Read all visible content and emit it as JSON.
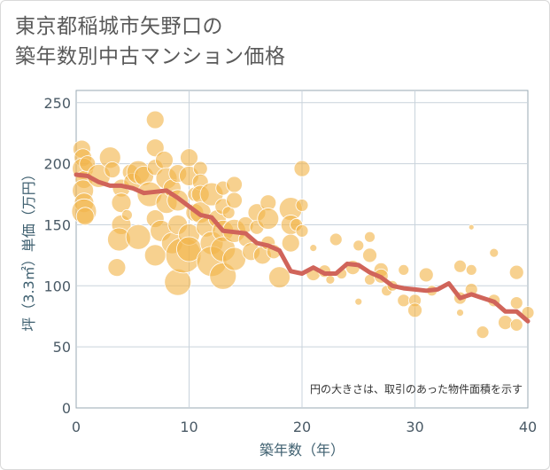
{
  "title_line1": "東京都稲城市矢野口の",
  "title_line2": "築年数別中古マンション価格",
  "colors": {
    "bubble_fill": "#f2b54a",
    "bubble_stroke": "#ffffff",
    "line": "#d0645a",
    "grid": "#c9d3dc",
    "plot_border": "#9aa8b3"
  },
  "chart_data": {
    "type": "scatter",
    "xlabel": "築年数（年）",
    "ylabel": "坪（3.3㎡）単価（万円）",
    "xlim": [
      0,
      40
    ],
    "ylim": [
      0,
      260
    ],
    "xticks": [
      0,
      10,
      20,
      30,
      40
    ],
    "yticks": [
      0,
      50,
      100,
      150,
      200,
      250
    ],
    "grid": true,
    "note": "円の大きさは、取引のあった物件面積を示す",
    "bubbles": [
      {
        "x": 0.5,
        "y": 212,
        "size": 10
      },
      {
        "x": 0.6,
        "y": 205,
        "size": 10
      },
      {
        "x": 0.6,
        "y": 196,
        "size": 12
      },
      {
        "x": 0.7,
        "y": 187,
        "size": 10
      },
      {
        "x": 0.6,
        "y": 178,
        "size": 12
      },
      {
        "x": 0.7,
        "y": 168,
        "size": 11
      },
      {
        "x": 0.7,
        "y": 161,
        "size": 14
      },
      {
        "x": 0.8,
        "y": 157,
        "size": 10
      },
      {
        "x": 1.0,
        "y": 200,
        "size": 9
      },
      {
        "x": 2.0,
        "y": 190,
        "size": 13
      },
      {
        "x": 3.0,
        "y": 205,
        "size": 12
      },
      {
        "x": 3.2,
        "y": 195,
        "size": 9
      },
      {
        "x": 4.0,
        "y": 180,
        "size": 10
      },
      {
        "x": 4.0,
        "y": 168,
        "size": 11
      },
      {
        "x": 4.0,
        "y": 150,
        "size": 11
      },
      {
        "x": 3.8,
        "y": 138,
        "size": 13
      },
      {
        "x": 3.6,
        "y": 115,
        "size": 10
      },
      {
        "x": 4.5,
        "y": 158,
        "size": 6
      },
      {
        "x": 4.8,
        "y": 193,
        "size": 9
      },
      {
        "x": 5.0,
        "y": 185,
        "size": 10
      },
      {
        "x": 5.5,
        "y": 193,
        "size": 13
      },
      {
        "x": 6.0,
        "y": 190,
        "size": 11
      },
      {
        "x": 5.5,
        "y": 140,
        "size": 14
      },
      {
        "x": 6.5,
        "y": 175,
        "size": 14
      },
      {
        "x": 7.0,
        "y": 236,
        "size": 10
      },
      {
        "x": 7.0,
        "y": 213,
        "size": 10
      },
      {
        "x": 7.0,
        "y": 197,
        "size": 9
      },
      {
        "x": 7.0,
        "y": 155,
        "size": 10
      },
      {
        "x": 7.5,
        "y": 145,
        "size": 12
      },
      {
        "x": 7.0,
        "y": 125,
        "size": 12
      },
      {
        "x": 7.8,
        "y": 203,
        "size": 10
      },
      {
        "x": 8.0,
        "y": 188,
        "size": 12
      },
      {
        "x": 8.0,
        "y": 168,
        "size": 12
      },
      {
        "x": 8.5,
        "y": 180,
        "size": 10
      },
      {
        "x": 8.5,
        "y": 135,
        "size": 12
      },
      {
        "x": 9.0,
        "y": 192,
        "size": 10
      },
      {
        "x": 9.0,
        "y": 170,
        "size": 12
      },
      {
        "x": 9.0,
        "y": 150,
        "size": 11
      },
      {
        "x": 9.0,
        "y": 103,
        "size": 15
      },
      {
        "x": 9.5,
        "y": 125,
        "size": 20
      },
      {
        "x": 10.0,
        "y": 205,
        "size": 10
      },
      {
        "x": 10.0,
        "y": 190,
        "size": 11
      },
      {
        "x": 10.0,
        "y": 142,
        "size": 12
      },
      {
        "x": 10.0,
        "y": 130,
        "size": 14
      },
      {
        "x": 10.5,
        "y": 175,
        "size": 8
      },
      {
        "x": 10.5,
        "y": 160,
        "size": 10
      },
      {
        "x": 11.0,
        "y": 196,
        "size": 8
      },
      {
        "x": 11.0,
        "y": 185,
        "size": 9
      },
      {
        "x": 11.0,
        "y": 175,
        "size": 10
      },
      {
        "x": 11.0,
        "y": 160,
        "size": 12
      },
      {
        "x": 11.5,
        "y": 148,
        "size": 11
      },
      {
        "x": 12.0,
        "y": 175,
        "size": 13
      },
      {
        "x": 12.0,
        "y": 135,
        "size": 13
      },
      {
        "x": 12.0,
        "y": 120,
        "size": 17
      },
      {
        "x": 12.5,
        "y": 155,
        "size": 10
      },
      {
        "x": 13.0,
        "y": 180,
        "size": 8
      },
      {
        "x": 13.0,
        "y": 165,
        "size": 9
      },
      {
        "x": 13.0,
        "y": 145,
        "size": 12
      },
      {
        "x": 13.0,
        "y": 130,
        "size": 14
      },
      {
        "x": 13.0,
        "y": 108,
        "size": 15
      },
      {
        "x": 13.5,
        "y": 160,
        "size": 7
      },
      {
        "x": 14.0,
        "y": 183,
        "size": 9
      },
      {
        "x": 14.0,
        "y": 170,
        "size": 9
      },
      {
        "x": 14.0,
        "y": 145,
        "size": 13
      },
      {
        "x": 14.0,
        "y": 122,
        "size": 13
      },
      {
        "x": 15.0,
        "y": 150,
        "size": 9
      },
      {
        "x": 15.0,
        "y": 138,
        "size": 8
      },
      {
        "x": 15.5,
        "y": 128,
        "size": 10
      },
      {
        "x": 16.0,
        "y": 160,
        "size": 10
      },
      {
        "x": 16.0,
        "y": 148,
        "size": 8
      },
      {
        "x": 16.5,
        "y": 125,
        "size": 10
      },
      {
        "x": 17.0,
        "y": 168,
        "size": 9
      },
      {
        "x": 17.0,
        "y": 155,
        "size": 12
      },
      {
        "x": 17.0,
        "y": 135,
        "size": 8
      },
      {
        "x": 17.5,
        "y": 128,
        "size": 8
      },
      {
        "x": 18.0,
        "y": 107,
        "size": 12
      },
      {
        "x": 19.0,
        "y": 163,
        "size": 13
      },
      {
        "x": 19.0,
        "y": 150,
        "size": 11
      },
      {
        "x": 19.0,
        "y": 135,
        "size": 10
      },
      {
        "x": 19.5,
        "y": 150,
        "size": 7
      },
      {
        "x": 20.0,
        "y": 196,
        "size": 9
      },
      {
        "x": 20.0,
        "y": 166,
        "size": 7
      },
      {
        "x": 20.0,
        "y": 145,
        "size": 7
      },
      {
        "x": 21.0,
        "y": 131,
        "size": 4
      },
      {
        "x": 21.0,
        "y": 110,
        "size": 8
      },
      {
        "x": 22.0,
        "y": 112,
        "size": 7
      },
      {
        "x": 22.5,
        "y": 105,
        "size": 5
      },
      {
        "x": 23.0,
        "y": 138,
        "size": 7
      },
      {
        "x": 23.5,
        "y": 110,
        "size": 6
      },
      {
        "x": 24.5,
        "y": 115,
        "size": 8
      },
      {
        "x": 25.0,
        "y": 133,
        "size": 6
      },
      {
        "x": 25.0,
        "y": 87,
        "size": 4
      },
      {
        "x": 26.0,
        "y": 140,
        "size": 6
      },
      {
        "x": 26.0,
        "y": 125,
        "size": 8
      },
      {
        "x": 26.0,
        "y": 105,
        "size": 6
      },
      {
        "x": 27.0,
        "y": 113,
        "size": 8
      },
      {
        "x": 27.0,
        "y": 108,
        "size": 8
      },
      {
        "x": 27.5,
        "y": 96,
        "size": 6
      },
      {
        "x": 28.0,
        "y": 100,
        "size": 6
      },
      {
        "x": 29.0,
        "y": 113,
        "size": 6
      },
      {
        "x": 29.0,
        "y": 88,
        "size": 7
      },
      {
        "x": 30.0,
        "y": 88,
        "size": 7
      },
      {
        "x": 30.0,
        "y": 80,
        "size": 8
      },
      {
        "x": 31.0,
        "y": 109,
        "size": 8
      },
      {
        "x": 31.5,
        "y": 96,
        "size": 6
      },
      {
        "x": 34.0,
        "y": 116,
        "size": 7
      },
      {
        "x": 34.0,
        "y": 90,
        "size": 7
      },
      {
        "x": 34.0,
        "y": 78,
        "size": 4
      },
      {
        "x": 35.0,
        "y": 148,
        "size": 3
      },
      {
        "x": 35.0,
        "y": 113,
        "size": 6
      },
      {
        "x": 35.0,
        "y": 97,
        "size": 7
      },
      {
        "x": 36.0,
        "y": 62,
        "size": 7
      },
      {
        "x": 37.0,
        "y": 127,
        "size": 5
      },
      {
        "x": 37.0,
        "y": 88,
        "size": 7
      },
      {
        "x": 38.0,
        "y": 70,
        "size": 8
      },
      {
        "x": 39.0,
        "y": 111,
        "size": 8
      },
      {
        "x": 39.0,
        "y": 86,
        "size": 7
      },
      {
        "x": 39.0,
        "y": 68,
        "size": 7
      },
      {
        "x": 40.0,
        "y": 78,
        "size": 7
      }
    ],
    "series": [
      {
        "x": [
          0,
          1,
          2,
          3,
          4,
          5,
          6,
          7,
          8,
          9,
          10,
          11,
          12,
          13,
          14,
          15,
          16,
          17,
          18,
          19,
          20,
          21,
          22,
          23,
          24,
          25,
          26,
          27,
          28,
          29,
          30,
          31,
          32,
          33,
          34,
          35,
          36,
          37,
          38,
          39,
          40
        ],
        "y": [
          191,
          190,
          185,
          182,
          182,
          180,
          176,
          177,
          178,
          172,
          165,
          158,
          156,
          145,
          144,
          143,
          135,
          133,
          129,
          112,
          110,
          115,
          110,
          110,
          118,
          117,
          111,
          107,
          100,
          98,
          97,
          96,
          97,
          102,
          90,
          93,
          90,
          87,
          79,
          79,
          71
        ]
      }
    ]
  }
}
